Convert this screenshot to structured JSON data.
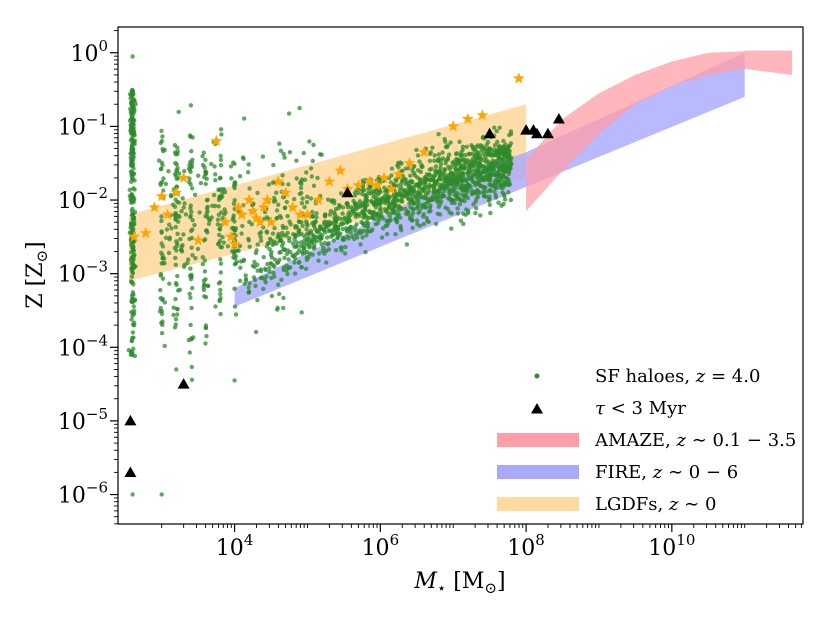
{
  "chart_data": {
    "type": "scatter",
    "xscale": "log",
    "yscale": "log",
    "xlim_log10": [
      2.4,
      11.8
    ],
    "ylim_log10": [
      -6.4,
      0.35
    ],
    "xlabel": {
      "main": "M",
      "sub": "⋆",
      "unit": " [M",
      "unit_sub": "⊙",
      "unit_close": "]"
    },
    "ylabel": {
      "main": "Z [Z",
      "sub": "⊙",
      "close": "]"
    },
    "xticks": [
      {
        "base": "10",
        "exp": "4",
        "log": 4
      },
      {
        "base": "10",
        "exp": "6",
        "log": 6
      },
      {
        "base": "10",
        "exp": "8",
        "log": 8
      },
      {
        "base": "10",
        "exp": "10",
        "log": 10
      }
    ],
    "yticks": [
      {
        "base": "10",
        "exp": "0",
        "log": 0
      },
      {
        "base": "10",
        "exp": "−1",
        "log": -1
      },
      {
        "base": "10",
        "exp": "−2",
        "log": -2
      },
      {
        "base": "10",
        "exp": "−3",
        "log": -3
      },
      {
        "base": "10",
        "exp": "−4",
        "log": -4
      },
      {
        "base": "10",
        "exp": "−5",
        "log": -5
      },
      {
        "base": "10",
        "exp": "−6",
        "log": -6
      }
    ],
    "bands": [
      {
        "name": "LGDFs",
        "color": "#ffd9a0",
        "opacity": 0.9,
        "upper": [
          [
            2.55,
            -2.2
          ],
          [
            8.0,
            -0.7
          ]
        ],
        "lower": [
          [
            2.55,
            -3.1
          ],
          [
            8.0,
            -1.7
          ]
        ]
      },
      {
        "name": "FIRE",
        "color": "#a8a8ff",
        "opacity": 0.8,
        "upper": [
          [
            4.0,
            -3.2
          ],
          [
            7.3,
            -1.6
          ],
          [
            8.0,
            -1.35
          ],
          [
            11.0,
            0.0
          ]
        ],
        "lower": [
          [
            4.0,
            -3.45
          ],
          [
            11.0,
            -0.6
          ]
        ]
      },
      {
        "name": "AMAZE",
        "color": "#ff9ea6",
        "opacity": 0.75,
        "upper": [
          [
            8.0,
            -1.45
          ],
          [
            8.5,
            -0.9
          ],
          [
            9.0,
            -0.55
          ],
          [
            9.5,
            -0.3
          ],
          [
            10.0,
            -0.12
          ],
          [
            10.5,
            0.0
          ],
          [
            11.0,
            0.02
          ],
          [
            11.0,
            0.03
          ],
          [
            11.65,
            0.03
          ]
        ],
        "lower": [
          [
            8.0,
            -2.15
          ],
          [
            8.5,
            -1.6
          ],
          [
            9.0,
            -1.1
          ],
          [
            9.5,
            -0.7
          ],
          [
            10.0,
            -0.45
          ],
          [
            10.5,
            -0.3
          ],
          [
            11.0,
            -0.22
          ],
          [
            11.65,
            -0.3
          ]
        ]
      }
    ],
    "series": [
      {
        "name": "SF haloes, z = 4.0",
        "marker": "dot",
        "color": "#2e8b2e"
      },
      {
        "name": "τ < 3 Myr",
        "marker": "triangle",
        "color": "#000000",
        "x_log": [
          2.57,
          2.57,
          3.3,
          7.5,
          5.55,
          8.0,
          8.1,
          8.15,
          8.3,
          8.45
        ],
        "y_log": [
          -5.0,
          -5.7,
          -4.5,
          -1.1,
          -1.9,
          -1.05,
          -1.05,
          -1.1,
          -1.1,
          -0.9
        ]
      },
      {
        "name": "LGDFs stars",
        "marker": "star",
        "color": "#ffa500",
        "x_log": [
          2.62,
          2.78,
          2.9,
          3.0,
          3.08,
          3.2,
          3.3,
          3.5,
          3.75,
          3.87,
          3.95,
          4.0,
          4.05,
          4.1,
          4.2,
          4.25,
          4.3,
          4.35,
          4.4,
          4.45,
          4.5,
          4.6,
          4.7,
          4.8,
          4.9,
          5.0,
          5.15,
          5.3,
          5.45,
          5.55,
          5.7,
          5.85,
          5.95,
          6.05,
          6.15,
          6.25,
          6.4,
          6.6,
          7.0,
          7.2,
          7.4,
          7.9
        ],
        "y_log": [
          -2.5,
          -2.45,
          -2.1,
          -1.95,
          -2.2,
          -1.9,
          -1.7,
          -2.55,
          -1.2,
          -2.3,
          -2.5,
          -2.6,
          -2.1,
          -2.2,
          -2.0,
          -2.15,
          -2.25,
          -2.3,
          -2.1,
          -2.0,
          -2.3,
          -1.75,
          -1.9,
          -2.1,
          -2.2,
          -2.2,
          -2.0,
          -1.75,
          -1.6,
          -1.85,
          -1.8,
          -1.75,
          -1.8,
          -1.7,
          -1.85,
          -1.65,
          -1.5,
          -1.35,
          -1.0,
          -0.9,
          -0.85,
          -0.35
        ]
      },
      {
        "name": "AMAZE, z ~ 0.1 − 3.5",
        "marker": "band",
        "color": "#ff9ea6"
      },
      {
        "name": "FIRE, z ~ 0 − 6",
        "marker": "band",
        "color": "#a8a8ff"
      },
      {
        "name": "LGDFs, z ~ 0",
        "marker": "band",
        "color": "#ffd9a0"
      }
    ],
    "legend": {
      "placement": "lower-right",
      "entries": [
        {
          "marker": "dot",
          "color": "#2e8b2e",
          "label": "SF haloes, ",
          "math": "z",
          "rest": " = 4.0"
        },
        {
          "marker": "triangle",
          "color": "#000000",
          "label": "",
          "math": "τ",
          "rest": " < 3 Myr"
        },
        {
          "marker": "band",
          "color": "#ff9ea6",
          "label": "AMAZE, ",
          "math": "z",
          "rest": " ∼ 0.1 − 3.5"
        },
        {
          "marker": "band",
          "color": "#a8a8ff",
          "label": "FIRE, ",
          "math": "z",
          "rest": " ∼ 0 − 6"
        },
        {
          "marker": "band",
          "color": "#ffd9a0",
          "label": "LGDFs, ",
          "math": "z",
          "rest": " ∼ 0"
        }
      ]
    }
  }
}
